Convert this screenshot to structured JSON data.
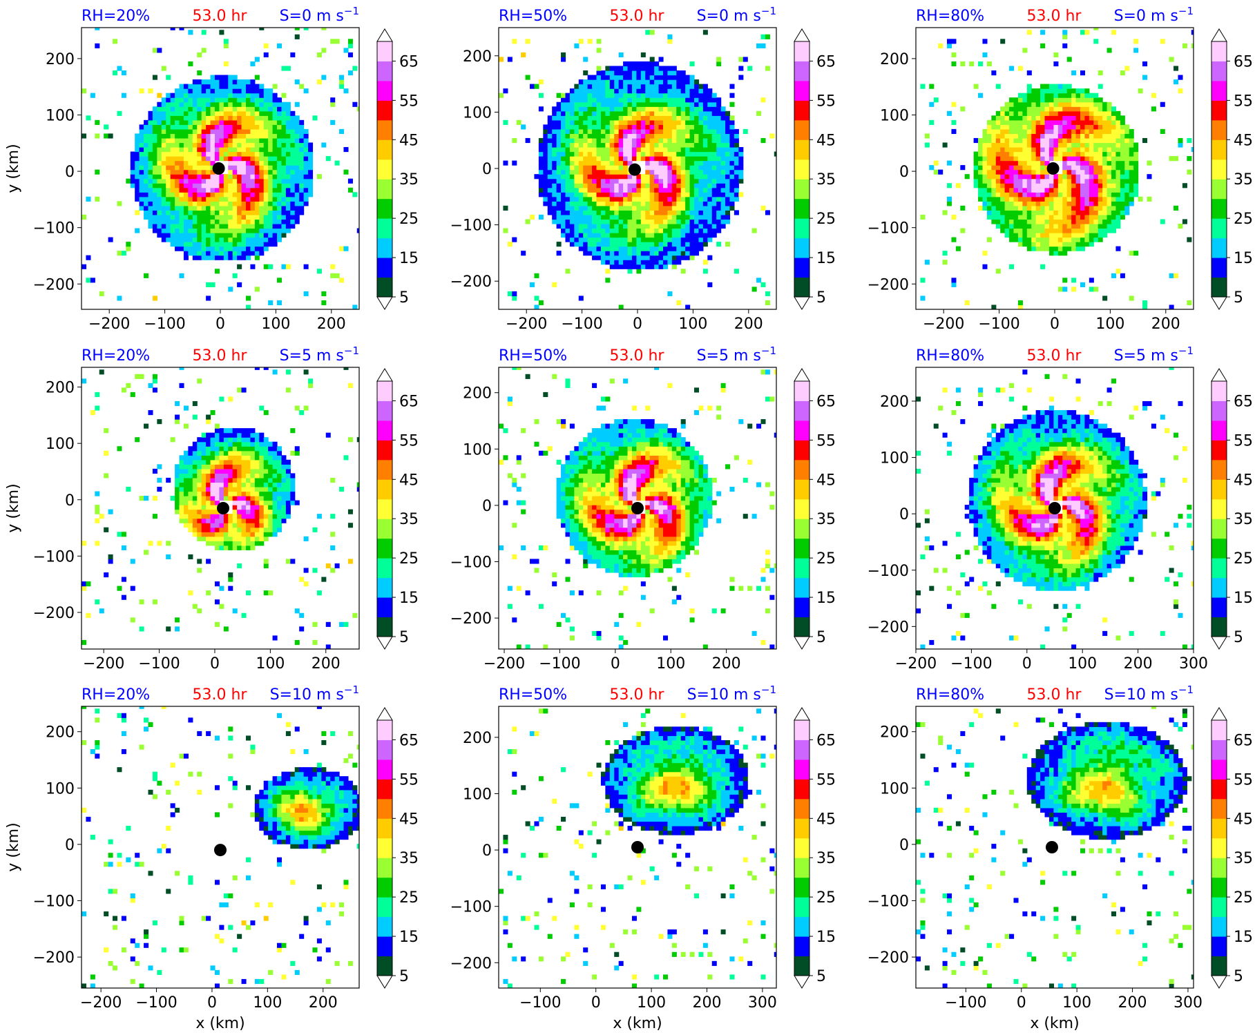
{
  "figure": {
    "time_label": "53.0 hr",
    "x_axis_label": "x (km)",
    "y_axis_label": "y (km)",
    "colors": {
      "header_blue": "#0000ff",
      "header_red": "#ff0000",
      "center_marker": "#000000"
    }
  },
  "colorbar": {
    "levels": [
      5,
      10,
      15,
      20,
      25,
      30,
      35,
      40,
      45,
      50,
      55,
      60,
      65,
      70
    ],
    "colors": [
      "#004d26",
      "#0000ff",
      "#00ccff",
      "#00ff99",
      "#00cc00",
      "#99ff33",
      "#ffff33",
      "#ffcc00",
      "#ff8000",
      "#ff0000",
      "#ff00ff",
      "#cc66ff",
      "#ffccff"
    ],
    "ticks": [
      "5",
      "15",
      "25",
      "35",
      "45",
      "55",
      "65"
    ],
    "extend": "both"
  },
  "chart_data": [
    {
      "type": "heatmap",
      "rh": "RH=20%",
      "s": "S=0 m s",
      "sup": "−1",
      "xticks": [
        -200,
        -100,
        0,
        100,
        200
      ],
      "yticks": [
        -200,
        -100,
        0,
        100,
        200
      ],
      "xlim": [
        -250,
        250
      ],
      "ylim": [
        -245,
        255
      ],
      "center": [
        -3,
        5
      ],
      "ring": 60,
      "blob": [
        0,
        0,
        165
      ],
      "ox": "0",
      "oy": "0"
    },
    {
      "type": "heatmap",
      "rh": "RH=50%",
      "s": "S=0 m s",
      "sup": "−1",
      "xticks": [
        -200,
        -100,
        0,
        100,
        200
      ],
      "yticks": [
        -200,
        -100,
        0,
        100,
        200
      ],
      "xlim": [
        -250,
        250
      ],
      "ylim": [
        -250,
        250
      ],
      "center": [
        -5,
        -2
      ],
      "ring": 60,
      "blob": [
        0,
        0,
        185
      ],
      "ox": "0",
      "oy": "0"
    },
    {
      "type": "heatmap",
      "rh": "RH=80%",
      "s": "S=0 m s",
      "sup": "−1",
      "xticks": [
        -200,
        -100,
        0,
        100,
        200
      ],
      "yticks": [
        -200,
        -100,
        0,
        100,
        200
      ],
      "xlim": [
        -250,
        250
      ],
      "ylim": [
        -245,
        255
      ],
      "center": [
        -3,
        5
      ],
      "ring": 80,
      "blob": [
        0,
        0,
        150
      ],
      "ox": "0",
      "oy": "0"
    },
    {
      "type": "heatmap",
      "rh": "RH=20%",
      "s": "S=5 m s",
      "sup": "−1",
      "xticks": [
        -200,
        -100,
        0,
        100,
        200
      ],
      "yticks": [
        -200,
        -100,
        0,
        100,
        200
      ],
      "xlim": [
        -240,
        260
      ],
      "ylim": [
        -265,
        235
      ],
      "center": [
        15,
        -15
      ],
      "ring": 50,
      "blob": [
        30,
        15,
        110
      ],
      "ox": "0",
      "oy": "0"
    },
    {
      "type": "heatmap",
      "rh": "RH=50%",
      "s": "S=5 m s",
      "sup": "−1",
      "xticks": [
        -200,
        -100,
        0,
        100,
        200
      ],
      "yticks": [
        -200,
        -100,
        0,
        100,
        200
      ],
      "xlim": [
        -210,
        290
      ],
      "ylim": [
        -255,
        245
      ],
      "center": [
        40,
        -5
      ],
      "ring": 60,
      "blob": [
        30,
        10,
        140
      ],
      "ox": "0",
      "oy": "0"
    },
    {
      "type": "heatmap",
      "rh": "RH=80%",
      "s": "S=5 m s",
      "sup": "−1",
      "xticks": [
        -200,
        -100,
        0,
        100,
        200,
        300
      ],
      "yticks": [
        -200,
        -100,
        0,
        100,
        200
      ],
      "xlim": [
        -200,
        300
      ],
      "ylim": [
        -240,
        260
      ],
      "center": [
        50,
        10
      ],
      "ring": 60,
      "blob": [
        50,
        20,
        160
      ],
      "ox": "0",
      "oy": "0"
    },
    {
      "type": "heatmap",
      "rh": "RH=20%",
      "s": "S=10 m s",
      "sup": "−1",
      "xticks": [
        -200,
        -100,
        0,
        100,
        200
      ],
      "yticks": [
        -200,
        -100,
        0,
        100,
        200
      ],
      "xlim": [
        -235,
        265
      ],
      "ylim": [
        -255,
        245
      ],
      "center": [
        15,
        -10
      ],
      "ring": 0,
      "blob": [
        170,
        60,
        90
      ],
      "ox": "0",
      "oy": "0"
    },
    {
      "type": "heatmap",
      "rh": "RH=50%",
      "s": "S=10 m s",
      "sup": "−1",
      "xticks": [
        -100,
        0,
        100,
        200,
        300
      ],
      "yticks": [
        -200,
        -100,
        0,
        100,
        200
      ],
      "xlim": [
        -175,
        325
      ],
      "ylim": [
        -245,
        255
      ],
      "center": [
        75,
        5
      ],
      "ring": 0,
      "blob": [
        140,
        120,
        120
      ],
      "ox": "0",
      "oy": "0"
    },
    {
      "type": "heatmap",
      "rh": "RH=80%",
      "s": "S=10 m s",
      "sup": "−1",
      "xticks": [
        -100,
        0,
        100,
        200,
        300
      ],
      "yticks": [
        -200,
        -100,
        0,
        100,
        200
      ],
      "xlim": [
        -190,
        310
      ],
      "ylim": [
        -255,
        245
      ],
      "center": [
        55,
        -5
      ],
      "ring": 0,
      "blob": [
        150,
        110,
        130
      ],
      "ox": "0",
      "oy": "0"
    }
  ]
}
